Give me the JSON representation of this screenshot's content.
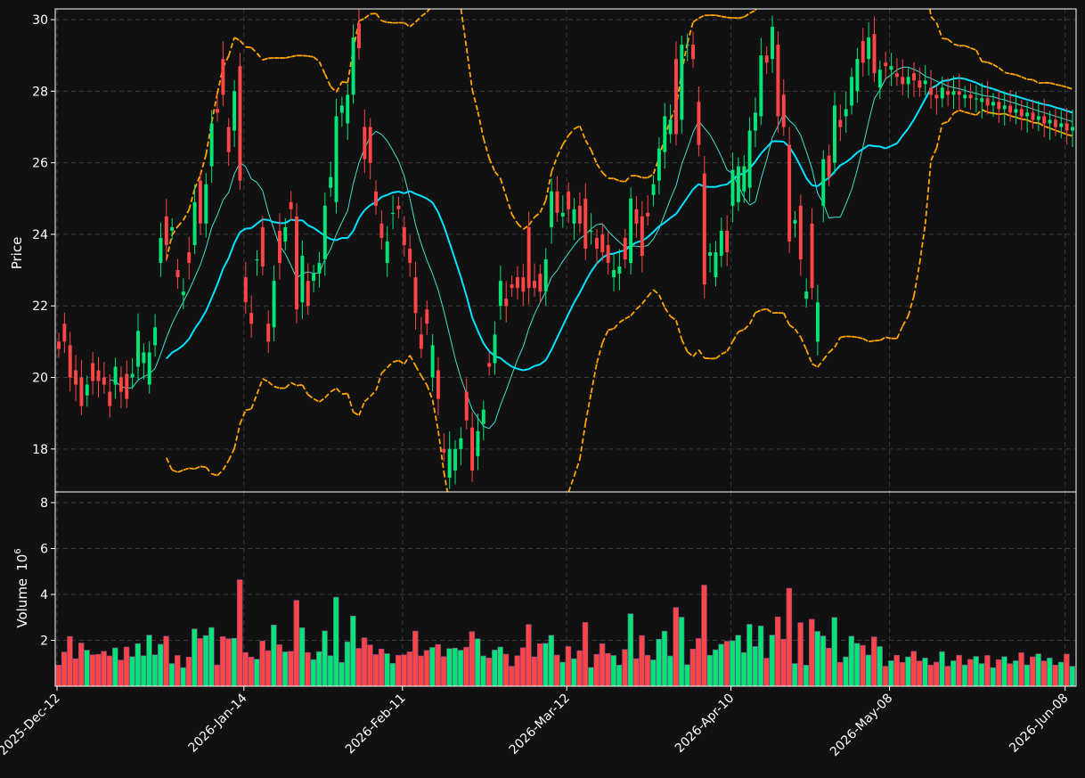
{
  "chart_data": {
    "type": "candlestick",
    "dates": [
      "2025-12-12",
      "2025-12-13",
      "2025-12-14",
      "2025-12-15",
      "2025-12-16",
      "2025-12-17",
      "2025-12-18",
      "2025-12-19",
      "2025-12-20",
      "2025-12-21",
      "2025-12-22",
      "2025-12-23",
      "2025-12-24",
      "2025-12-25",
      "2025-12-26",
      "2025-12-27",
      "2025-12-28",
      "2025-12-29",
      "2025-12-30",
      "2025-12-31",
      "2026-01-01",
      "2026-01-02",
      "2026-01-03",
      "2026-01-04",
      "2026-01-05",
      "2026-01-06",
      "2026-01-07",
      "2026-01-08",
      "2026-01-09",
      "2026-01-10",
      "2026-01-11",
      "2026-01-12",
      "2026-01-13",
      "2026-01-14",
      "2026-01-15",
      "2026-01-16",
      "2026-01-17",
      "2026-01-18",
      "2026-01-19",
      "2026-01-20",
      "2026-01-21",
      "2026-01-22",
      "2026-01-23",
      "2026-01-24",
      "2026-01-25",
      "2026-01-26",
      "2026-01-27",
      "2026-01-28",
      "2026-01-29",
      "2026-01-30",
      "2026-01-31",
      "2026-02-01",
      "2026-02-02",
      "2026-02-03",
      "2026-02-04",
      "2026-02-05",
      "2026-02-06",
      "2026-02-07",
      "2026-02-08",
      "2026-02-09",
      "2026-02-10",
      "2026-02-11",
      "2026-02-12",
      "2026-02-13",
      "2026-02-14",
      "2026-02-15",
      "2026-02-16",
      "2026-02-17",
      "2026-02-18",
      "2026-02-19",
      "2026-02-20",
      "2026-02-21",
      "2026-02-22",
      "2026-02-23",
      "2026-02-24",
      "2026-02-25",
      "2026-02-26",
      "2026-02-27",
      "2026-02-28",
      "2026-03-01",
      "2026-03-02",
      "2026-03-03",
      "2026-03-04",
      "2026-03-05",
      "2026-03-06",
      "2026-03-07",
      "2026-03-08",
      "2026-03-09",
      "2026-03-10",
      "2026-03-11",
      "2026-03-12",
      "2026-03-13",
      "2026-03-14",
      "2026-03-15",
      "2026-03-16",
      "2026-03-17",
      "2026-03-18",
      "2026-03-19",
      "2026-03-20",
      "2026-03-21",
      "2026-03-22",
      "2026-03-23",
      "2026-03-24",
      "2026-03-25",
      "2026-03-26",
      "2026-03-27",
      "2026-03-28",
      "2026-03-29",
      "2026-03-30",
      "2026-03-31",
      "2026-04-01",
      "2026-04-02",
      "2026-04-03",
      "2026-04-04",
      "2026-04-05",
      "2026-04-06",
      "2026-04-07",
      "2026-04-08",
      "2026-04-09",
      "2026-04-10",
      "2026-04-11",
      "2026-04-12",
      "2026-04-13",
      "2026-04-14",
      "2026-04-15",
      "2026-04-16",
      "2026-04-17",
      "2026-04-18",
      "2026-04-19",
      "2026-04-20",
      "2026-04-21",
      "2026-04-22",
      "2026-04-23",
      "2026-04-24",
      "2026-04-25",
      "2026-04-26",
      "2026-04-27",
      "2026-04-28",
      "2026-04-29",
      "2026-04-30",
      "2026-05-01",
      "2026-05-02",
      "2026-05-03",
      "2026-05-04",
      "2026-05-05",
      "2026-05-06",
      "2026-05-07",
      "2026-05-08",
      "2026-05-09",
      "2026-05-10",
      "2026-05-11",
      "2026-05-12",
      "2026-05-13",
      "2026-05-14",
      "2026-05-15",
      "2026-05-16",
      "2026-05-17",
      "2026-05-18",
      "2026-05-19",
      "2026-05-20",
      "2026-05-21",
      "2026-05-22",
      "2026-05-23",
      "2026-05-24",
      "2026-05-25",
      "2026-05-26",
      "2026-05-27",
      "2026-05-28",
      "2026-05-29",
      "2026-05-30",
      "2026-05-31",
      "2026-06-01",
      "2026-06-02",
      "2026-06-03",
      "2026-06-04",
      "2026-06-05",
      "2026-06-06",
      "2026-06-07",
      "2026-06-08",
      "2026-06-09",
      "2026-06-10",
      "2026-06-11"
    ],
    "candles": [
      [
        21.0,
        20.8
      ],
      [
        21.5,
        21.0
      ],
      [
        20.9,
        20.0
      ],
      [
        20.2,
        19.8
      ],
      [
        20.0,
        19.2
      ],
      [
        19.5,
        19.8
      ],
      [
        20.4,
        19.9
      ],
      [
        20.2,
        19.9
      ],
      [
        20.0,
        19.8
      ],
      [
        19.6,
        19.2
      ],
      [
        19.8,
        20.3
      ],
      [
        20.0,
        19.6
      ],
      [
        20.1,
        19.4
      ],
      [
        20.0,
        20.1
      ],
      [
        20.3,
        21.3
      ],
      [
        20.4,
        20.7
      ],
      [
        19.8,
        20.7
      ],
      [
        20.9,
        21.4
      ],
      [
        23.2,
        23.9
      ],
      [
        24.5,
        23.7
      ],
      [
        24.1,
        24.2
      ],
      [
        23.0,
        22.8
      ],
      [
        22.3,
        22.4
      ],
      [
        23.5,
        23.2
      ],
      [
        23.7,
        24.9
      ],
      [
        25.5,
        24.3
      ],
      [
        24.3,
        25.4
      ],
      [
        25.9,
        27.1
      ],
      [
        27.5,
        27.4
      ],
      [
        28.9,
        27.9
      ],
      [
        27.0,
        26.3
      ],
      [
        26.9,
        28.0
      ],
      [
        28.7,
        25.5
      ],
      [
        22.8,
        22.1
      ],
      [
        21.8,
        21.5
      ],
      [
        23.3,
        23.3
      ],
      [
        24.2,
        23.1
      ],
      [
        21.5,
        21.0
      ],
      [
        21.4,
        22.7
      ],
      [
        24.1,
        23.2
      ],
      [
        23.8,
        24.2
      ],
      [
        24.9,
        24.7
      ],
      [
        24.5,
        21.9
      ],
      [
        22.1,
        23.4
      ],
      [
        22.7,
        22.0
      ],
      [
        22.7,
        22.9
      ],
      [
        22.9,
        23.2
      ],
      [
        23.3,
        24.8
      ],
      [
        25.3,
        25.6
      ],
      [
        24.9,
        27.3
      ],
      [
        27.4,
        27.6
      ],
      [
        27.1,
        27.9
      ],
      [
        27.9,
        29.5
      ],
      [
        29.9,
        29.2
      ],
      [
        27.0,
        26.1
      ],
      [
        27.0,
        26.0
      ],
      [
        25.2,
        24.8
      ],
      [
        24.3,
        23.9
      ],
      [
        23.2,
        23.8
      ],
      [
        24.6,
        24.6
      ],
      [
        24.8,
        24.7
      ],
      [
        24.2,
        23.7
      ],
      [
        23.6,
        23.2
      ],
      [
        22.8,
        21.8
      ],
      [
        21.2,
        20.8
      ],
      [
        21.9,
        21.5
      ],
      [
        20.0,
        20.9
      ],
      [
        20.2,
        19.4
      ],
      [
        18.0,
        17.9
      ],
      [
        17.2,
        18.0
      ],
      [
        17.4,
        18.0
      ],
      [
        18.0,
        18.3
      ],
      [
        19.6,
        18.8
      ],
      [
        18.6,
        17.4
      ],
      [
        17.8,
        18.5
      ],
      [
        18.7,
        19.1
      ],
      [
        20.4,
        20.3
      ],
      [
        20.4,
        21.2
      ],
      [
        22.0,
        22.7
      ],
      [
        22.2,
        22.0
      ],
      [
        22.6,
        22.5
      ],
      [
        22.8,
        22.5
      ],
      [
        22.8,
        22.4
      ],
      [
        24.2,
        22.5
      ],
      [
        22.7,
        22.5
      ],
      [
        22.9,
        22.4
      ],
      [
        22.4,
        23.3
      ],
      [
        24.2,
        25.2
      ],
      [
        25.2,
        24.6
      ],
      [
        24.5,
        24.6
      ],
      [
        25.2,
        24.7
      ],
      [
        24.3,
        24.7
      ],
      [
        24.8,
        24.3
      ],
      [
        25.0,
        23.6
      ],
      [
        24.1,
        24.1
      ],
      [
        23.9,
        23.6
      ],
      [
        24.0,
        23.5
      ],
      [
        23.7,
        23.2
      ],
      [
        22.8,
        23.0
      ],
      [
        22.9,
        23.1
      ],
      [
        23.9,
        23.3
      ],
      [
        23.2,
        25.0
      ],
      [
        24.7,
        24.3
      ],
      [
        24.5,
        23.4
      ],
      [
        24.6,
        24.5
      ],
      [
        25.1,
        25.4
      ],
      [
        25.5,
        26.4
      ],
      [
        26.3,
        27.3
      ],
      [
        26.8,
        27.2
      ],
      [
        28.9,
        26.8
      ],
      [
        27.2,
        29.3
      ],
      [
        29.3,
        29.3
      ],
      [
        29.3,
        28.9
      ],
      [
        27.7,
        26.5
      ],
      [
        25.7,
        22.6
      ],
      [
        23.4,
        23.5
      ],
      [
        22.8,
        23.5
      ],
      [
        23.4,
        24.1
      ],
      [
        24.1,
        23.5
      ],
      [
        24.8,
        25.8
      ],
      [
        24.9,
        25.9
      ],
      [
        25.2,
        25.9
      ],
      [
        25.3,
        26.9
      ],
      [
        26.9,
        27.4
      ],
      [
        27.3,
        29.0
      ],
      [
        29.0,
        28.8
      ],
      [
        28.9,
        29.8
      ],
      [
        29.3,
        27.3
      ],
      [
        27.9,
        27.0
      ],
      [
        26.5,
        23.8
      ],
      [
        24.3,
        24.4
      ],
      [
        24.8,
        23.3
      ],
      [
        22.2,
        22.4
      ],
      [
        24.3,
        22.5
      ],
      [
        21.0,
        22.1
      ],
      [
        24.8,
        26.1
      ],
      [
        26.2,
        25.6
      ],
      [
        26.0,
        27.6
      ],
      [
        27.2,
        27.0
      ],
      [
        27.3,
        27.5
      ],
      [
        27.6,
        28.4
      ],
      [
        28.0,
        28.9
      ],
      [
        29.4,
        28.8
      ],
      [
        28.9,
        29.5
      ],
      [
        29.6,
        28.5
      ],
      [
        28.1,
        28.6
      ],
      [
        28.8,
        28.7
      ],
      [
        28.6,
        28.7
      ],
      [
        28.5,
        28.4
      ],
      [
        28.4,
        28.2
      ],
      [
        28.2,
        28.4
      ],
      [
        28.5,
        28.3
      ],
      [
        28.3,
        28.1
      ],
      [
        28.2,
        28.3
      ],
      [
        28.1,
        27.9
      ],
      [
        27.9,
        27.8
      ],
      [
        27.8,
        28.1
      ],
      [
        28.0,
        27.9
      ],
      [
        27.9,
        28.0
      ],
      [
        28.0,
        27.9
      ],
      [
        27.8,
        27.9
      ],
      [
        27.9,
        27.8
      ],
      [
        27.8,
        27.8
      ],
      [
        27.7,
        27.8
      ],
      [
        27.8,
        27.6
      ],
      [
        27.6,
        27.7
      ],
      [
        27.7,
        27.5
      ],
      [
        27.5,
        27.6
      ],
      [
        27.6,
        27.4
      ],
      [
        27.4,
        27.5
      ],
      [
        27.5,
        27.3
      ],
      [
        27.3,
        27.4
      ],
      [
        27.4,
        27.2
      ],
      [
        27.2,
        27.3
      ],
      [
        27.3,
        27.1
      ],
      [
        27.1,
        27.2
      ],
      [
        27.2,
        27.0
      ],
      [
        27.0,
        27.1
      ],
      [
        27.1,
        26.9
      ],
      [
        26.9,
        27.0
      ]
    ],
    "price_axis": {
      "label": "Price",
      "ylim": [
        16.8,
        30.3
      ],
      "ticks": [
        "18",
        "20",
        "22",
        "24",
        "26",
        "28",
        "30"
      ]
    },
    "volume_axis": {
      "label": "Volume",
      "exponent": "10",
      "exponent_power": "6",
      "ylim": [
        0,
        8
      ],
      "ticks": [
        "2",
        "4",
        "6",
        "8"
      ]
    },
    "x_ticks": [
      "2025-Dec-12",
      "2026-Jan-14",
      "2026-Feb-11",
      "2026-Mar-12",
      "2026-Apr-10",
      "2026-May-08",
      "2026-Jun-08"
    ],
    "colors": {
      "up": "#00e676",
      "down": "#ff4545",
      "ma_fast": "#40e0d0",
      "ma_slow": "#00e5ff",
      "band": "#ffa500",
      "grid": "#3a3a3a",
      "background": "#111111",
      "frame": "#ffffff"
    },
    "grid": true
  }
}
